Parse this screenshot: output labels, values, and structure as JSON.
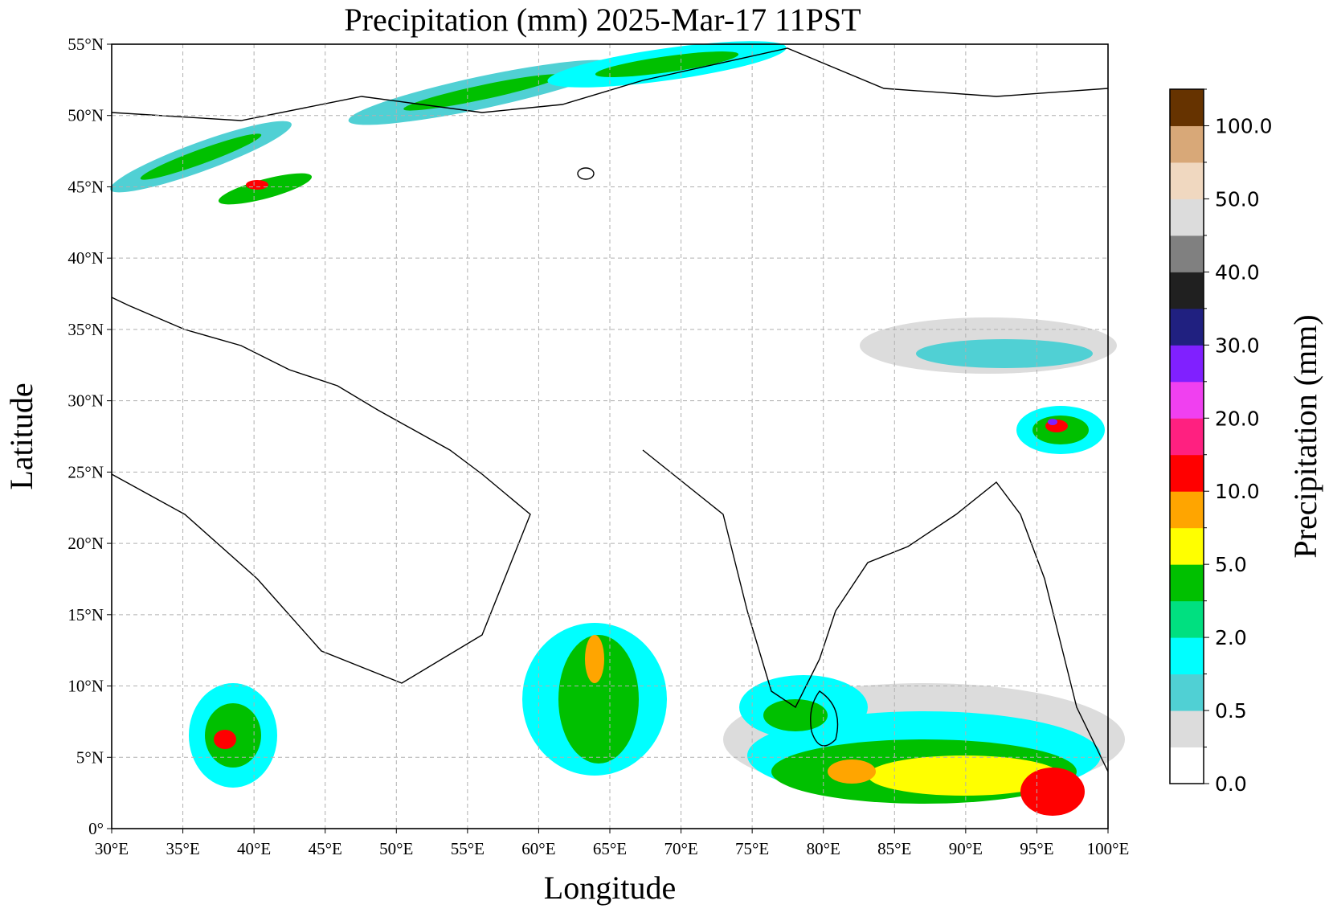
{
  "title": "Precipitation (mm)  2025-Mar-17 11PST",
  "x_axis": {
    "label": "Longitude",
    "ticks": [
      "30°E",
      "35°E",
      "40°E",
      "45°E",
      "50°E",
      "55°E",
      "60°E",
      "65°E",
      "70°E",
      "75°E",
      "80°E",
      "85°E",
      "90°E",
      "95°E",
      "100°E"
    ]
  },
  "y_axis": {
    "label": "Latitude",
    "ticks": [
      "0°",
      "5°N",
      "10°N",
      "15°N",
      "20°N",
      "25°N",
      "30°N",
      "35°N",
      "40°N",
      "45°N",
      "50°N",
      "55°N"
    ]
  },
  "colorbar": {
    "label": "Precipitation (mm)",
    "ticks": [
      "0.0",
      "0.5",
      "2.0",
      "5.0",
      "10.0",
      "20.0",
      "30.0",
      "40.0",
      "50.0",
      "100.0"
    ],
    "colors": [
      "#ffffff",
      "#dcdcdc",
      "#50d0d4",
      "#00ffff",
      "#00e080",
      "#00c000",
      "#ffff00",
      "#ffa500",
      "#ff0000",
      "#ff2080",
      "#f040f0",
      "#8020ff",
      "#202080",
      "#202020",
      "#808080",
      "#dcdcdc",
      "#f0d8c0",
      "#d8a878",
      "#663300"
    ]
  }
}
